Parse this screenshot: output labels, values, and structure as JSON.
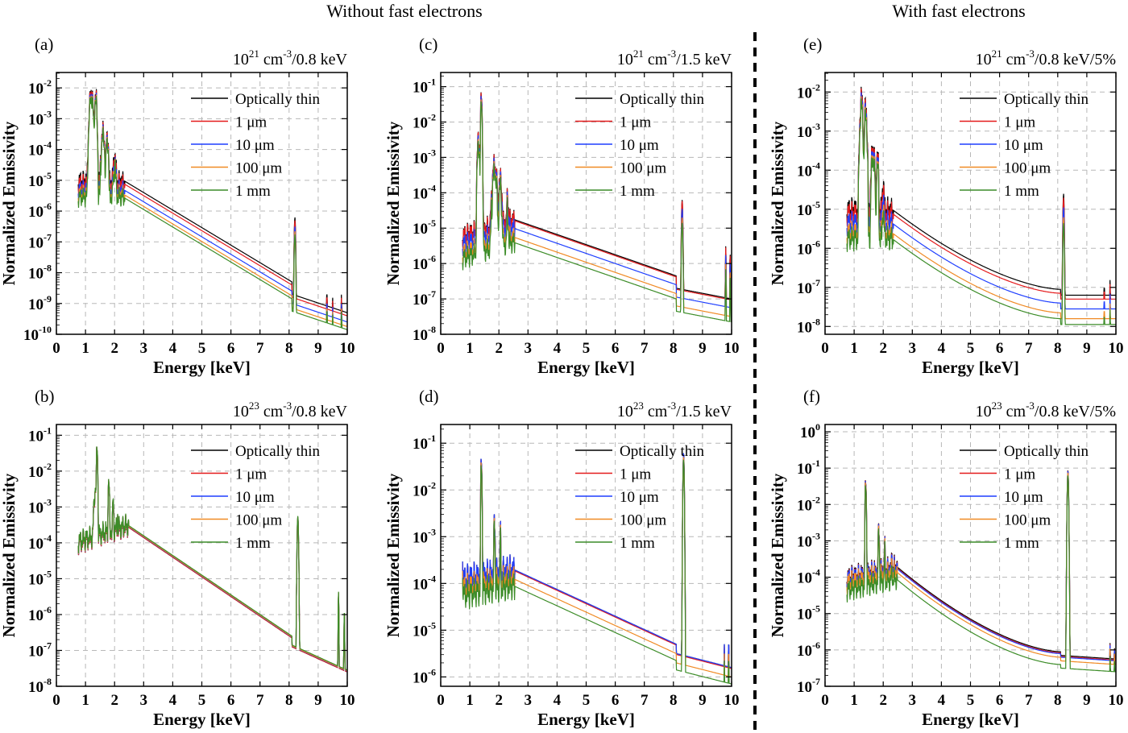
{
  "headers": {
    "left": "Without fast electrons",
    "right": "With fast electrons"
  },
  "colors": {
    "optically_thin": "#000000",
    "1um": "#e41a1c",
    "10um": "#1f3fff",
    "100um": "#f08a24",
    "1mm": "#3c8c28"
  },
  "chart_data": [
    {
      "id": "a",
      "panel_label": "(a)",
      "type": "line",
      "title_base": "10",
      "title_exp": "21",
      "title_rest": " cm-3/0.8 keV",
      "xlabel": "Energy [keV]",
      "ylabel": "Normalized Emissivity",
      "xlim": [
        0,
        10
      ],
      "x_ticks": [
        0,
        1,
        2,
        3,
        4,
        5,
        6,
        7,
        8,
        9,
        10
      ],
      "ylog": true,
      "ylim_exp": [
        -10,
        -1.5
      ],
      "y_tick_exps": [
        -10,
        -9,
        -8,
        -7,
        -6,
        -5,
        -4,
        -3,
        -2
      ],
      "grid": true,
      "legend_position": "top-right",
      "legend": [
        "Optically thin",
        "1 μm",
        "10 μm",
        "100 μm",
        "1 mm"
      ],
      "profile": {
        "start_x": 0.75,
        "baseline_log": -5.0,
        "cont_start_x": 2.3,
        "cont_start_log": -5.0,
        "cont_end_x": 8.1,
        "cont_end_log": -8.3,
        "peaks": [
          [
            1.2,
            -2.1,
            0.15
          ],
          [
            1.35,
            -2.2,
            0.1
          ],
          [
            1.6,
            -3.4,
            0.15
          ],
          [
            1.75,
            -3.5,
            0.1
          ],
          [
            2.0,
            -4.2,
            0.15
          ]
        ],
        "kpeak_x": 8.2,
        "kpeak_log": -6.2,
        "tail_start_log": -8.7,
        "tail_end_log": -9.3,
        "tail_spikes": [
          [
            9.3,
            -8.6
          ],
          [
            9.5,
            -8.8
          ],
          [
            9.8,
            -8.7
          ]
        ]
      },
      "series_offsets": [
        0,
        -0.1,
        -0.3,
        -0.45,
        -0.55
      ]
    },
    {
      "id": "b",
      "panel_label": "(b)",
      "type": "line",
      "title_base": "10",
      "title_exp": "23",
      "title_rest": " cm-3/0.8 keV",
      "xlabel": "Energy [keV]",
      "ylabel": "Normalized Emissivity",
      "xlim": [
        0,
        10
      ],
      "x_ticks": [
        0,
        1,
        2,
        3,
        4,
        5,
        6,
        7,
        8,
        9,
        10
      ],
      "ylog": true,
      "ylim_exp": [
        -8,
        -0.7
      ],
      "y_tick_exps": [
        -8,
        -7,
        -6,
        -5,
        -4,
        -3,
        -2,
        -1
      ],
      "grid": true,
      "legend_position": "top-right",
      "legend": [
        "Optically thin",
        "1 μm",
        "10 μm",
        "100 μm",
        "1 mm"
      ],
      "profile": {
        "start_x": 0.75,
        "baseline_log": -4.0,
        "cont_start_x": 2.45,
        "cont_start_log": -3.55,
        "cont_end_x": 8.1,
        "cont_end_log": -6.65,
        "peaks": [
          [
            1.4,
            -1.3,
            0.05
          ],
          [
            1.35,
            -2.5,
            0.15
          ],
          [
            1.8,
            -2.3,
            0.06
          ],
          [
            1.95,
            -2.8,
            0.05
          ],
          [
            2.1,
            -3.2,
            0.05
          ]
        ],
        "kpeak_x": 8.3,
        "kpeak_log": -3.3,
        "tail_start_log": -6.9,
        "tail_end_log": -7.6,
        "tail_spikes": [
          [
            9.7,
            -5.4
          ],
          [
            9.9,
            -5.9
          ]
        ]
      },
      "series_offsets": [
        0,
        0,
        0.02,
        0.03,
        0.05
      ]
    },
    {
      "id": "c",
      "panel_label": "(c)",
      "type": "line",
      "title_base": "10",
      "title_exp": "21",
      "title_rest": " cm-3/1.5 keV",
      "xlabel": "Energy [keV]",
      "ylabel": "Normalized Emissivity",
      "xlim": [
        0,
        10
      ],
      "x_ticks": [
        0,
        1,
        2,
        3,
        4,
        5,
        6,
        7,
        8,
        9,
        10
      ],
      "ylog": true,
      "ylim_exp": [
        -8,
        -0.6
      ],
      "y_tick_exps": [
        -8,
        -7,
        -6,
        -5,
        -4,
        -3,
        -2,
        -1
      ],
      "grid": true,
      "legend_position": "top-right",
      "legend": [
        "Optically thin",
        "1 μm",
        "10 μm",
        "100 μm",
        "1 mm"
      ],
      "profile": {
        "start_x": 0.75,
        "baseline_log": -5.2,
        "cont_start_x": 2.5,
        "cont_start_log": -4.75,
        "cont_end_x": 8.1,
        "cont_end_log": -6.35,
        "peaks": [
          [
            1.4,
            -1.2,
            0.06
          ],
          [
            1.3,
            -2.4,
            0.1
          ],
          [
            1.85,
            -3.2,
            0.2
          ],
          [
            2.05,
            -3.6,
            0.15
          ],
          [
            2.3,
            -4.1,
            0.1
          ]
        ],
        "kpeak_x": 8.3,
        "kpeak_log": -4.2,
        "tail_start_log": -6.7,
        "tail_end_log": -7.0,
        "tail_spikes": [
          [
            9.8,
            -5.5
          ],
          [
            9.95,
            -5.7
          ]
        ]
      },
      "series_offsets": [
        0,
        -0.03,
        -0.25,
        -0.5,
        -0.65
      ]
    },
    {
      "id": "d",
      "panel_label": "(d)",
      "type": "line",
      "title_base": "10",
      "title_exp": "23",
      "title_rest": " cm-3/1.5 keV",
      "xlabel": "Energy [keV]",
      "ylabel": "Normalized Emissivity",
      "xlim": [
        0,
        10
      ],
      "x_ticks": [
        0,
        1,
        2,
        3,
        4,
        5,
        6,
        7,
        8,
        9,
        10
      ],
      "ylog": true,
      "ylim_exp": [
        -6.2,
        -0.6
      ],
      "y_tick_exps": [
        -6,
        -5,
        -4,
        -3,
        -2,
        -1
      ],
      "grid": true,
      "legend_position": "top-right",
      "legend": [
        "Optically thin",
        "1 μm",
        "10 μm",
        "100 μm",
        "1 mm"
      ],
      "profile": {
        "start_x": 0.75,
        "baseline_log": -3.9,
        "cont_start_x": 2.5,
        "cont_start_log": -3.7,
        "cont_end_x": 8.1,
        "cont_end_log": -5.3,
        "peaks": [
          [
            1.4,
            -1.3,
            0.05
          ],
          [
            1.85,
            -2.6,
            0.06
          ],
          [
            2.05,
            -2.9,
            0.05
          ],
          [
            0.75,
            -3.4,
            0.05
          ]
        ],
        "kpeak_x": 8.35,
        "kpeak_log": -1.2,
        "tail_start_log": -5.5,
        "tail_end_log": -5.8,
        "tail_spikes": [
          [
            9.75,
            -5.3
          ],
          [
            9.9,
            -5.2
          ]
        ]
      },
      "series_offsets": [
        0,
        -0.02,
        0,
        -0.2,
        -0.35
      ]
    },
    {
      "id": "e",
      "panel_label": "(e)",
      "type": "line",
      "title_base": "10",
      "title_exp": "21",
      "title_rest": " cm-3/0.8 keV/5%",
      "xlabel": "Energy [keV]",
      "ylabel": "Normalized Emissivity",
      "xlim": [
        0,
        10
      ],
      "x_ticks": [
        0,
        1,
        2,
        3,
        4,
        5,
        6,
        7,
        8,
        9,
        10
      ],
      "ylog": true,
      "ylim_exp": [
        -8.2,
        -1.5
      ],
      "y_tick_exps": [
        -8,
        -7,
        -6,
        -5,
        -4,
        -3,
        -2
      ],
      "grid": true,
      "legend_position": "top-right",
      "legend": [
        "Optically thin",
        "1 μm",
        "10 μm",
        "100 μm",
        "1 mm"
      ],
      "profile": {
        "start_x": 0.75,
        "baseline_log": -5.0,
        "cont_start_x": 2.3,
        "cont_start_log": -5.0,
        "cont_end_x": 8.1,
        "cont_end_log": -7.05,
        "curve": true,
        "peaks": [
          [
            1.25,
            -2.1,
            0.12
          ],
          [
            1.4,
            -2.3,
            0.1
          ],
          [
            1.65,
            -3.4,
            0.15
          ],
          [
            1.8,
            -3.6,
            0.1
          ],
          [
            2.0,
            -4.3,
            0.1
          ]
        ],
        "kpeak_x": 8.2,
        "kpeak_log": -4.6,
        "tail_start_log": -7.2,
        "tail_end_log": -7.2,
        "tail_spikes": [
          [
            9.6,
            -6.9
          ],
          [
            9.8,
            -6.8
          ]
        ]
      },
      "series_offsets": [
        0,
        -0.1,
        -0.35,
        -0.6,
        -0.75
      ]
    },
    {
      "id": "f",
      "panel_label": "(f)",
      "type": "line",
      "title_base": "10",
      "title_exp": "23",
      "title_rest": " cm-3/0.8 keV/5%",
      "xlabel": "Energy [keV]",
      "ylabel": "Normalized Emissivity",
      "xlim": [
        0,
        10
      ],
      "x_ticks": [
        0,
        1,
        2,
        3,
        4,
        5,
        6,
        7,
        8,
        9,
        10
      ],
      "ylog": true,
      "ylim_exp": [
        -7,
        0.2
      ],
      "y_tick_exps": [
        -7,
        -6,
        -5,
        -4,
        -3,
        -2,
        -1,
        0
      ],
      "grid": true,
      "legend_position": "top-right",
      "legend": [
        "Optically thin",
        "1 μm",
        "10 μm",
        "100 μm",
        "1 mm"
      ],
      "profile": {
        "start_x": 0.75,
        "baseline_log": -4.0,
        "cont_start_x": 2.45,
        "cont_start_log": -3.7,
        "cont_end_x": 8.1,
        "cont_end_log": -6.05,
        "curve": true,
        "peaks": [
          [
            1.4,
            -1.3,
            0.05
          ],
          [
            1.85,
            -2.6,
            0.06
          ],
          [
            2.05,
            -3.1,
            0.05
          ],
          [
            2.3,
            -3.4,
            0.05
          ]
        ],
        "kpeak_x": 8.35,
        "kpeak_log": -1.05,
        "tail_start_log": -6.15,
        "tail_end_log": -6.25,
        "tail_spikes": [
          [
            9.8,
            -5.8
          ],
          [
            9.95,
            -5.9
          ]
        ]
      },
      "series_offsets": [
        0,
        -0.03,
        -0.05,
        -0.15,
        -0.35
      ]
    }
  ]
}
